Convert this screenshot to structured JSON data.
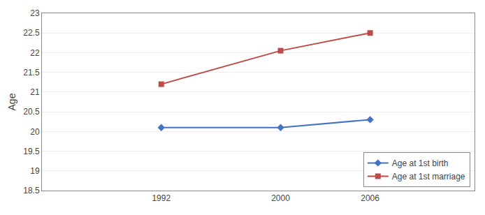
{
  "chart_data": {
    "type": "line",
    "x": [
      1992,
      2000,
      2006
    ],
    "series": [
      {
        "name": "Age at 1st birth",
        "color": "#4472C4",
        "marker": "diamond",
        "values": [
          20.1,
          20.1,
          20.3
        ]
      },
      {
        "name": "Age at 1st marriage",
        "color": "#BE4B48",
        "marker": "square",
        "values": [
          21.2,
          22.05,
          22.5
        ]
      }
    ],
    "ylabel": "Age",
    "xlim": [
      1984,
      2013
    ],
    "xticks": [
      1992,
      2000,
      2006
    ],
    "ylim": [
      18.5,
      23.0
    ],
    "yticks": [
      18.5,
      19,
      19.5,
      20,
      20.5,
      21,
      21.5,
      22,
      22.5,
      23
    ],
    "grid": "y",
    "legend": "lower right"
  }
}
